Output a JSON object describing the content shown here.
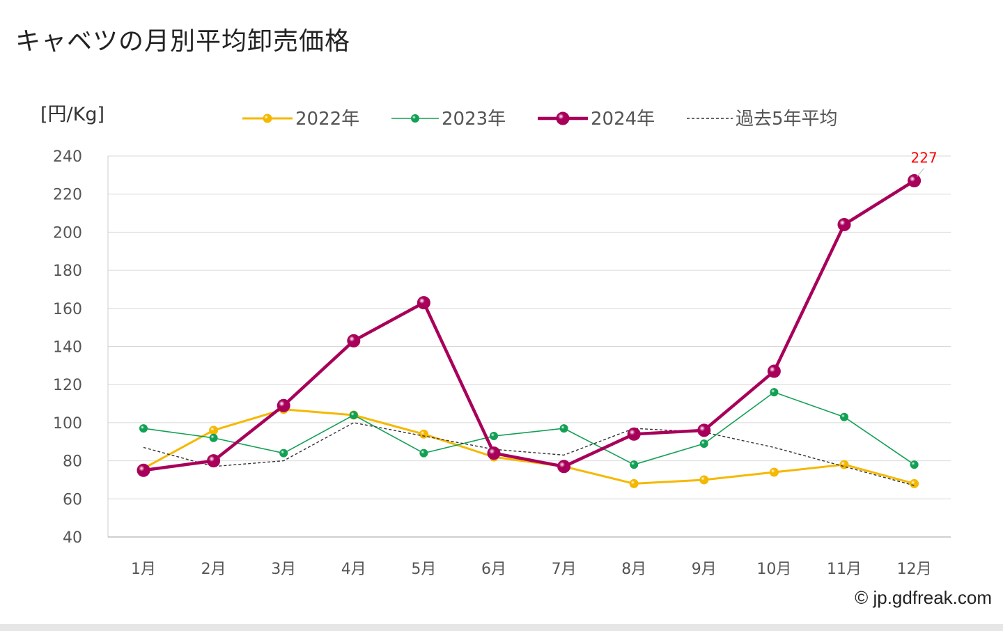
{
  "title": "キャベツの月別平均卸売価格",
  "copyright": "© jp.gdfreak.com",
  "chart_data": {
    "type": "line",
    "title": "キャベツの月別平均卸売価格",
    "ylabel": "[円/Kg]",
    "xlabel": "",
    "categories": [
      "1月",
      "2月",
      "3月",
      "4月",
      "5月",
      "6月",
      "7月",
      "8月",
      "9月",
      "10月",
      "11月",
      "12月"
    ],
    "ylim": [
      40,
      240
    ],
    "yticks": [
      40,
      60,
      80,
      100,
      120,
      140,
      160,
      180,
      200,
      220,
      240
    ],
    "grid": true,
    "legend_position": "top",
    "series": [
      {
        "name": "2022年",
        "color": "#f5b800",
        "marker": "sphere",
        "style": "solid",
        "values": [
          76,
          96,
          107,
          104,
          94,
          82,
          77,
          68,
          70,
          74,
          78,
          68
        ]
      },
      {
        "name": "2023年",
        "color": "#12a055",
        "marker": "sphere",
        "style": "solid",
        "values": [
          97,
          92,
          84,
          104,
          84,
          93,
          97,
          78,
          89,
          116,
          103,
          78
        ]
      },
      {
        "name": "2024年",
        "color": "#a8005a",
        "marker": "sphere",
        "style": "solid",
        "values": [
          75,
          80,
          109,
          143,
          163,
          84,
          77,
          94,
          96,
          127,
          204,
          227
        ]
      },
      {
        "name": "過去5年平均",
        "color": "#333333",
        "marker": "none",
        "style": "dashed",
        "values": [
          87,
          77,
          80,
          100,
          93,
          86,
          83,
          97,
          95,
          87,
          77,
          67
        ]
      }
    ],
    "annotations": [
      {
        "series": "2024年",
        "category": "12月",
        "text": "227",
        "color": "#ff0000"
      }
    ]
  }
}
